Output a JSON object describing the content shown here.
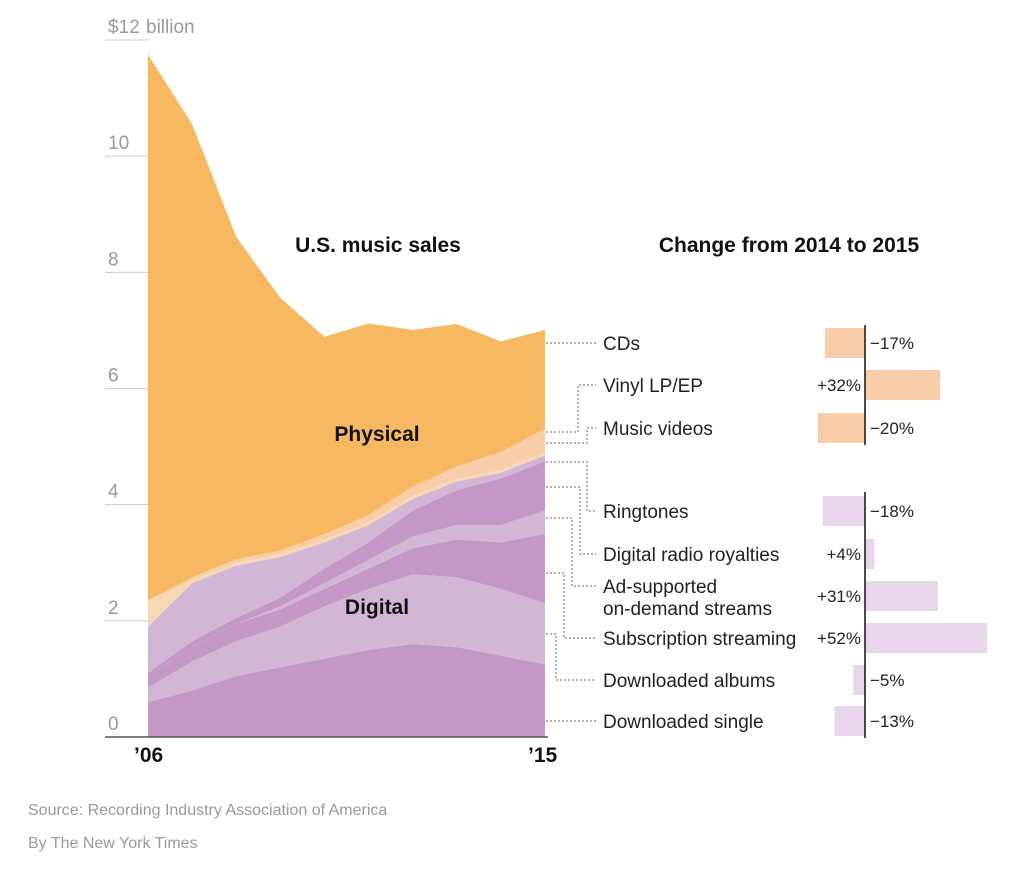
{
  "chart_data": [
    {
      "type": "area",
      "stacked": true,
      "title": "U.S. music sales",
      "y_unit_label": "billion",
      "y_ticks": [
        "$12",
        "10",
        "8",
        "6",
        "4",
        "2",
        "0"
      ],
      "ylim": [
        0,
        12
      ],
      "x_tick_labels": [
        "’06",
        "’15"
      ],
      "x": [
        2006,
        2007,
        2008,
        2009,
        2010,
        2011,
        2012,
        2013,
        2014,
        2015
      ],
      "group_labels": {
        "physical": "Physical",
        "digital": "Digital"
      },
      "series": [
        {
          "name": "Downloaded single",
          "group": "digital",
          "color": "#c497c7",
          "values": [
            0.6,
            0.8,
            1.05,
            1.2,
            1.35,
            1.5,
            1.6,
            1.55,
            1.4,
            1.25
          ]
        },
        {
          "name": "Downloaded albums",
          "group": "digital",
          "color": "#d3b6d6",
          "values": [
            0.25,
            0.5,
            0.6,
            0.7,
            0.9,
            1.05,
            1.2,
            1.2,
            1.15,
            1.05
          ]
        },
        {
          "name": "Subscription streaming",
          "group": "digital",
          "color": "#c497c7",
          "values": [
            0.2,
            0.25,
            0.3,
            0.3,
            0.3,
            0.35,
            0.45,
            0.65,
            0.8,
            1.2
          ]
        },
        {
          "name": "Ad-supported on-demand streams",
          "group": "digital",
          "color": "#d3b6d6",
          "values": [
            0.0,
            0.0,
            0.0,
            0.05,
            0.1,
            0.15,
            0.2,
            0.25,
            0.3,
            0.4
          ]
        },
        {
          "name": "Digital radio royalties",
          "group": "digital",
          "color": "#c497c7",
          "values": [
            0.05,
            0.1,
            0.1,
            0.15,
            0.25,
            0.3,
            0.45,
            0.6,
            0.8,
            0.85
          ]
        },
        {
          "name": "Ringtones",
          "group": "digital",
          "color": "#d3b6d6",
          "values": [
            0.8,
            1.0,
            0.9,
            0.7,
            0.45,
            0.3,
            0.2,
            0.15,
            0.1,
            0.1
          ]
        },
        {
          "name": "Music videos",
          "group": "physical",
          "color": "#f7d8b3",
          "values": [
            0.45,
            0.05,
            0.05,
            0.05,
            0.05,
            0.05,
            0.05,
            0.05,
            0.05,
            0.05
          ]
        },
        {
          "name": "Vinyl LP/EP",
          "group": "physical",
          "color": "#f9ccaa",
          "values": [
            0.0,
            0.05,
            0.06,
            0.06,
            0.09,
            0.12,
            0.16,
            0.21,
            0.31,
            0.41
          ]
        },
        {
          "name": "CDs",
          "group": "physical",
          "color": "#f7b862",
          "values": [
            9.4,
            7.8,
            5.55,
            4.35,
            3.4,
            3.3,
            2.7,
            2.45,
            1.9,
            1.7
          ]
        }
      ]
    },
    {
      "type": "bar",
      "orientation": "horizontal",
      "title": "Change from 2014 to 2015",
      "categories": [
        "CDs",
        "Vinyl LP/EP",
        "Music videos",
        "Ringtones",
        "Digital radio royalties",
        "Ad-supported on-demand streams",
        "Subscription streaming",
        "Downloaded albums",
        "Downloaded single"
      ],
      "label_lines": [
        [
          "CDs"
        ],
        [
          "Vinyl LP/EP"
        ],
        [
          "Music videos"
        ],
        [
          "Ringtones"
        ],
        [
          "Digital radio royalties"
        ],
        [
          "Ad-supported",
          "on-demand streams"
        ],
        [
          "Subscription streaming"
        ],
        [
          "Downloaded albums"
        ],
        [
          "Downloaded single"
        ]
      ],
      "values": [
        -17,
        32,
        -20,
        -18,
        4,
        31,
        52,
        -5,
        -13
      ],
      "value_labels": [
        "−17%",
        "+32%",
        "−20%",
        "−18%",
        "+4%",
        "+31%",
        "+52%",
        "−5%",
        "−13%"
      ],
      "groups": [
        "physical",
        "physical",
        "physical",
        "digital",
        "digital",
        "digital",
        "digital",
        "digital",
        "digital"
      ],
      "colors": {
        "physical": "#f9ccaa",
        "digital": "#e8d6ea"
      }
    }
  ],
  "footer": {
    "source": "Source: Recording Industry Association of America",
    "credit": "By The New York Times"
  }
}
